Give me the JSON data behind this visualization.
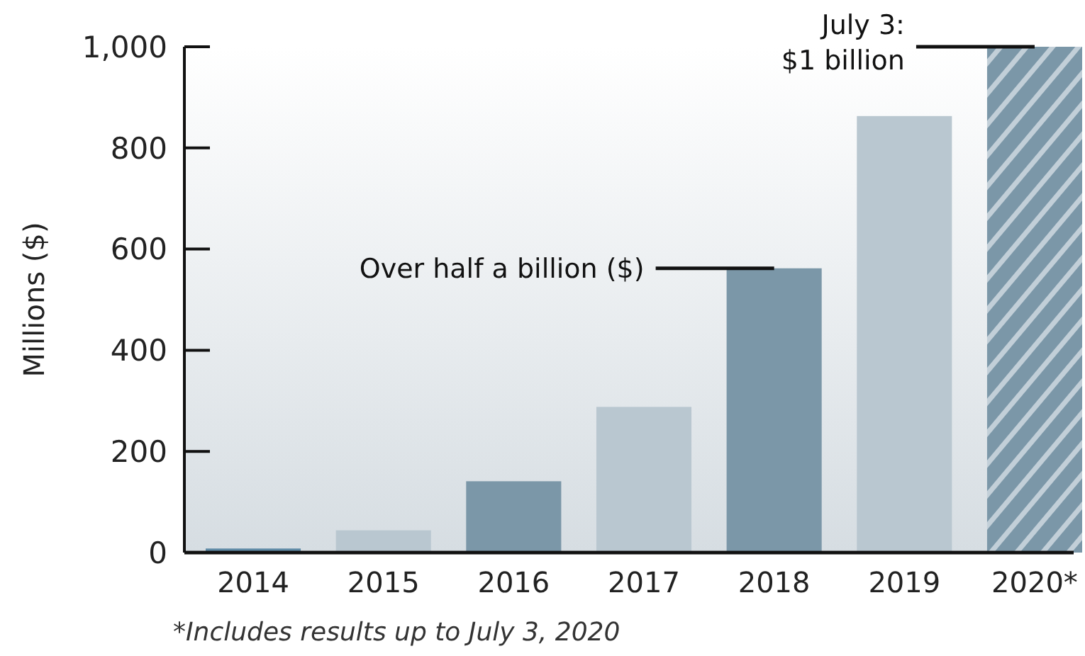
{
  "chart_data": {
    "type": "bar",
    "ylabel": "Millions ($)",
    "categories": [
      "2014",
      "2015",
      "2016",
      "2017",
      "2018",
      "2019",
      "2020*"
    ],
    "values": [
      8,
      44,
      141,
      288,
      562,
      863,
      1000
    ],
    "colors": [
      "#5e8aa6",
      "#b9c7d0",
      "#7b97a8",
      "#b9c7d0",
      "#7b97a8",
      "#b9c7d0",
      "#7b97a8"
    ],
    "ylim": [
      0,
      1000
    ],
    "yticks": [
      0,
      200,
      400,
      600,
      800,
      {
        "value": 1000,
        "label": "1,000"
      }
    ],
    "grid": false,
    "annotations": [
      {
        "text": "Over half a billion ($)",
        "x": "2018",
        "y": 562
      },
      {
        "text": "July 3:\n$1 billion",
        "x": "2020*",
        "y": 1000
      },
      "*Includes results up to July 3, 2020"
    ]
  }
}
